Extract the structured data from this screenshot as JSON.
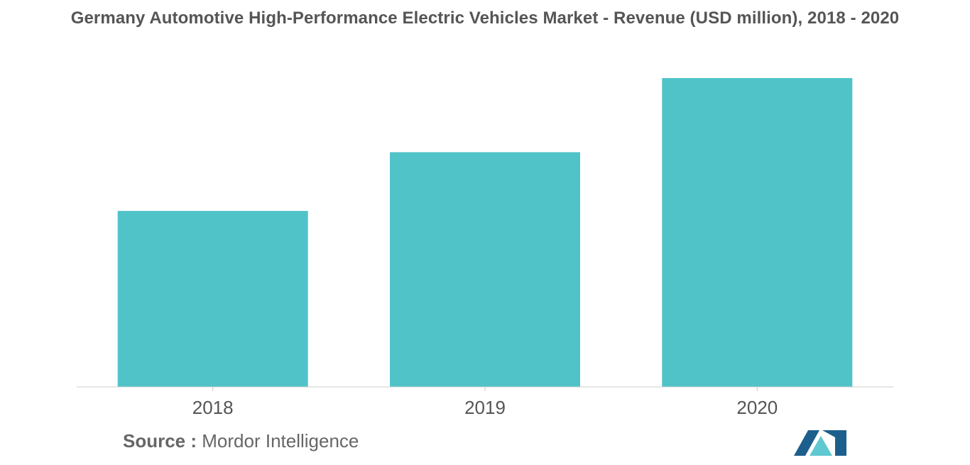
{
  "title": "Germany Automotive High-Performance Electric Vehicles Market - Revenue (USD million), 2018 - 2020",
  "source": {
    "label": "Source :",
    "text": "Mordor Intelligence"
  },
  "colors": {
    "bar": "#50c3c9",
    "axis": "#cccccc",
    "tick_text": "#555555",
    "logo_dark": "#1d5f8c",
    "logo_light": "#5fc8d0"
  },
  "chart_data": {
    "type": "bar",
    "title": "Germany Automotive High-Performance Electric Vehicles Market - Revenue (USD million), 2018 - 2020",
    "categories": [
      "2018",
      "2019",
      "2020"
    ],
    "values": [
      57,
      76,
      100
    ],
    "xlabel": "",
    "ylabel": "",
    "ylim": [
      0,
      100
    ],
    "grid": false,
    "legend": "none"
  }
}
